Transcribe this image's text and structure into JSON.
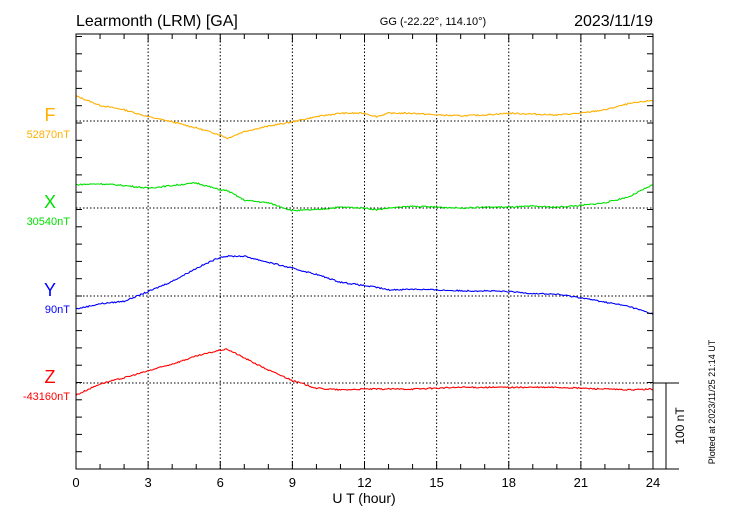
{
  "chart_data": {
    "type": "line",
    "title": "Learmonth (LRM)  [GA]",
    "coords": "GG (-22.22°, 114.10°)",
    "date": "2023/11/19",
    "xlabel": "U T (hour)",
    "xlim": [
      0,
      24
    ],
    "x_ticks": [
      "0",
      "3",
      "6",
      "9",
      "12",
      "15",
      "18",
      "21",
      "24"
    ],
    "scale_label": "100 nT",
    "scale_nT": 100,
    "footer": "Plotted at 2023/11/25 21:14 UT",
    "grid": true,
    "x": [
      0,
      1,
      2,
      3,
      4,
      5,
      6,
      6.3,
      7,
      8,
      9,
      10,
      11,
      12,
      12.5,
      13,
      14,
      15,
      16,
      17,
      18,
      19,
      20,
      21,
      22,
      23,
      24
    ],
    "series": [
      {
        "name": "F",
        "baseline_label": "52870nT",
        "color": "#ffb000",
        "values": [
          29,
          18,
          13,
          5,
          -1,
          -8,
          -16,
          -20,
          -12,
          -6,
          -1,
          5,
          9,
          9,
          5,
          9,
          9,
          7,
          6,
          7,
          9,
          8,
          7,
          9,
          13,
          20,
          24
        ]
      },
      {
        "name": "X",
        "baseline_label": "30540nT",
        "color": "#00e000",
        "values": [
          27,
          28,
          26,
          23,
          26,
          29,
          21,
          20,
          9,
          6,
          -3,
          -2,
          1,
          0,
          -2,
          0,
          2,
          1,
          0,
          1,
          1,
          2,
          1,
          3,
          6,
          13,
          27
        ]
      },
      {
        "name": "Y",
        "baseline_label": "90nT",
        "color": "#0000ff",
        "values": [
          -15,
          -9,
          -6,
          5,
          17,
          32,
          45,
          46,
          46,
          39,
          32,
          25,
          16,
          12,
          10,
          7,
          8,
          7,
          6,
          6,
          5,
          3,
          2,
          -2,
          -7,
          -12,
          -21
        ]
      },
      {
        "name": "Z",
        "baseline_label": "-43160nT",
        "color": "#ff0000",
        "values": [
          -14,
          -1,
          6,
          14,
          22,
          31,
          38,
          39,
          29,
          15,
          3,
          -6,
          -8,
          -7,
          -7,
          -7,
          -7,
          -6,
          -5,
          -5,
          -5,
          -5,
          -5,
          -6,
          -7,
          -8,
          -7
        ]
      }
    ]
  }
}
